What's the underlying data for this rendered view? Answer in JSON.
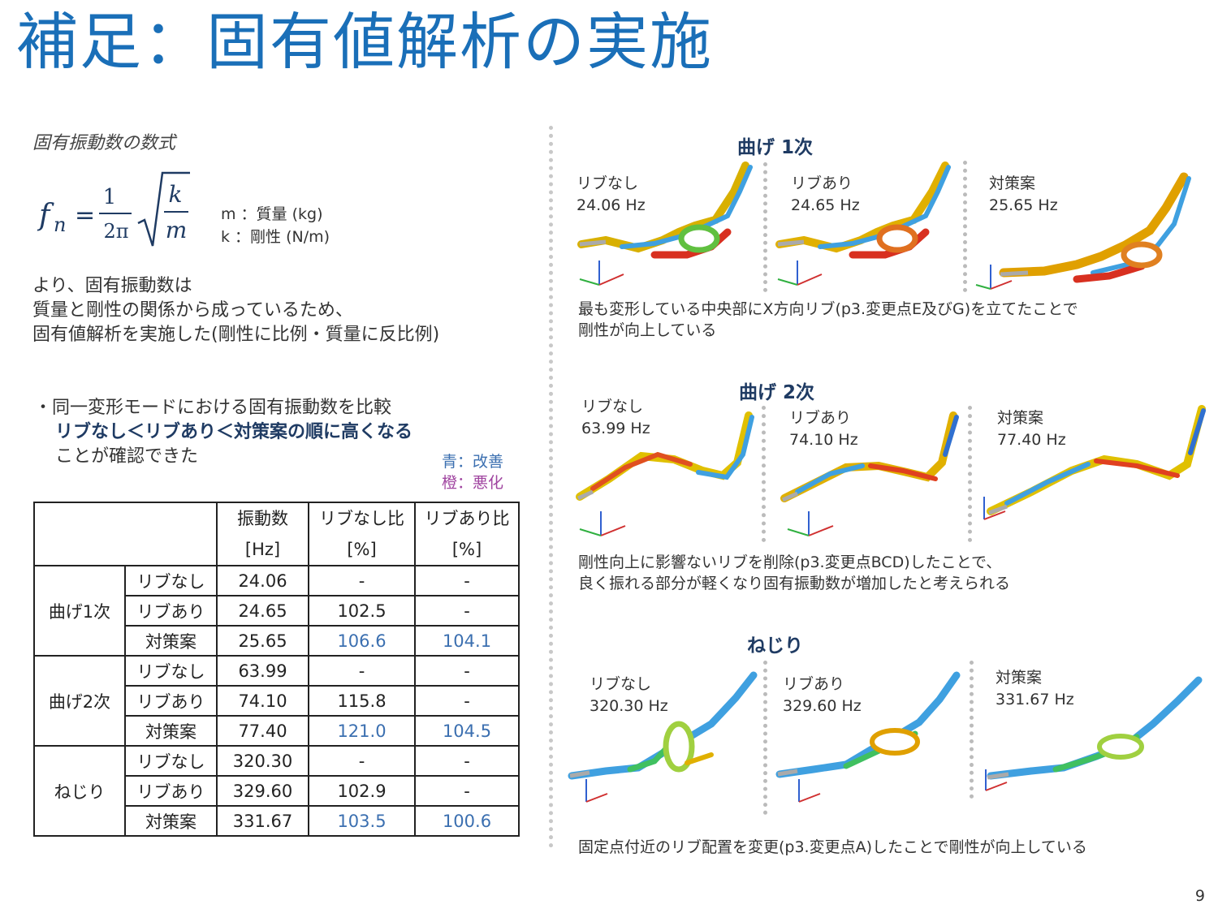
{
  "title": "補足：固有値解析の実施",
  "formula": {
    "caption": "固有振動数の数式",
    "lhs": "fn",
    "numerator": "1",
    "denominator": "2π",
    "k": "k",
    "m": "m",
    "var_m": "m ：質量 (kg)",
    "var_k": "k ：剛性 (N/m)"
  },
  "intro": {
    "line1": "より、固有振動数は",
    "line2": "質量と剛性の関係から成っているため、",
    "line3": "固有値解析を実施した(剛性に比例・質量に反比例)"
  },
  "finding": {
    "line1": "・同一変形モードにおける固有振動数を比較",
    "line2": "リブなし＜リブあり＜対策案の順に高くなる",
    "line3": "ことが確認できた"
  },
  "legend": {
    "blue": "青：改善",
    "orange": "橙：悪化"
  },
  "table": {
    "headers": {
      "freq": "振動数\n[Hz]",
      "ratio_no_rib": "リブなし比\n[%]",
      "ratio_rib": "リブあり比\n[%]"
    },
    "groups": [
      {
        "name": "曲げ1次",
        "rows": [
          {
            "case": "リブなし",
            "freq": "24.06",
            "r1": "-",
            "r2": "-"
          },
          {
            "case": "リブあり",
            "freq": "24.65",
            "r1": "102.5",
            "r2": "-"
          },
          {
            "case": "対策案",
            "freq": "25.65",
            "r1": "106.6",
            "r2": "104.1"
          }
        ]
      },
      {
        "name": "曲げ2次",
        "rows": [
          {
            "case": "リブなし",
            "freq": "63.99",
            "r1": "-",
            "r2": "-"
          },
          {
            "case": "リブあり",
            "freq": "74.10",
            "r1": "115.8",
            "r2": "-"
          },
          {
            "case": "対策案",
            "freq": "77.40",
            "r1": "121.0",
            "r2": "104.5"
          }
        ]
      },
      {
        "name": "ねじり",
        "rows": [
          {
            "case": "リブなし",
            "freq": "320.30",
            "r1": "-",
            "r2": "-"
          },
          {
            "case": "リブあり",
            "freq": "329.60",
            "r1": "102.9",
            "r2": "-"
          },
          {
            "case": "対策案",
            "freq": "331.67",
            "r1": "103.5",
            "r2": "100.6"
          }
        ]
      }
    ]
  },
  "modes": [
    {
      "title": "曲げ 1次",
      "panels": [
        {
          "name": "リブなし",
          "freq": "24.06 Hz"
        },
        {
          "name": "リブあり",
          "freq": "24.65 Hz"
        },
        {
          "name": "対策案",
          "freq": "25.65 Hz"
        }
      ],
      "note_line1": "最も変形している中央部にX方向リブ(p3.変更点E及びG)を立てたことで",
      "note_line2": "剛性が向上している"
    },
    {
      "title": "曲げ 2次",
      "panels": [
        {
          "name": "リブなし",
          "freq": "63.99 Hz"
        },
        {
          "name": "リブあり",
          "freq": "74.10 Hz"
        },
        {
          "name": "対策案",
          "freq": "77.40 Hz"
        }
      ],
      "note_line1": "剛性向上に影響ないリブを削除(p3.変更点BCD)したことで、",
      "note_line2": "良く振れる部分が軽くなり固有振動数が増加したと考えられる"
    },
    {
      "title": "ねじり",
      "panels": [
        {
          "name": "リブなし",
          "freq": "320.30 Hz"
        },
        {
          "name": "リブあり",
          "freq": "329.60 Hz"
        },
        {
          "name": "対策案",
          "freq": "331.67 Hz"
        }
      ],
      "note_line1": "固定点付近のリブ配置を変更(p3.変更点A)したことで剛性が向上している",
      "note_line2": ""
    }
  ],
  "page_number": "9",
  "colors": {
    "title": "#1a6fb8",
    "heading": "#1f3b63",
    "improve": "#3b6fb0",
    "worsen": "#a045a0"
  }
}
